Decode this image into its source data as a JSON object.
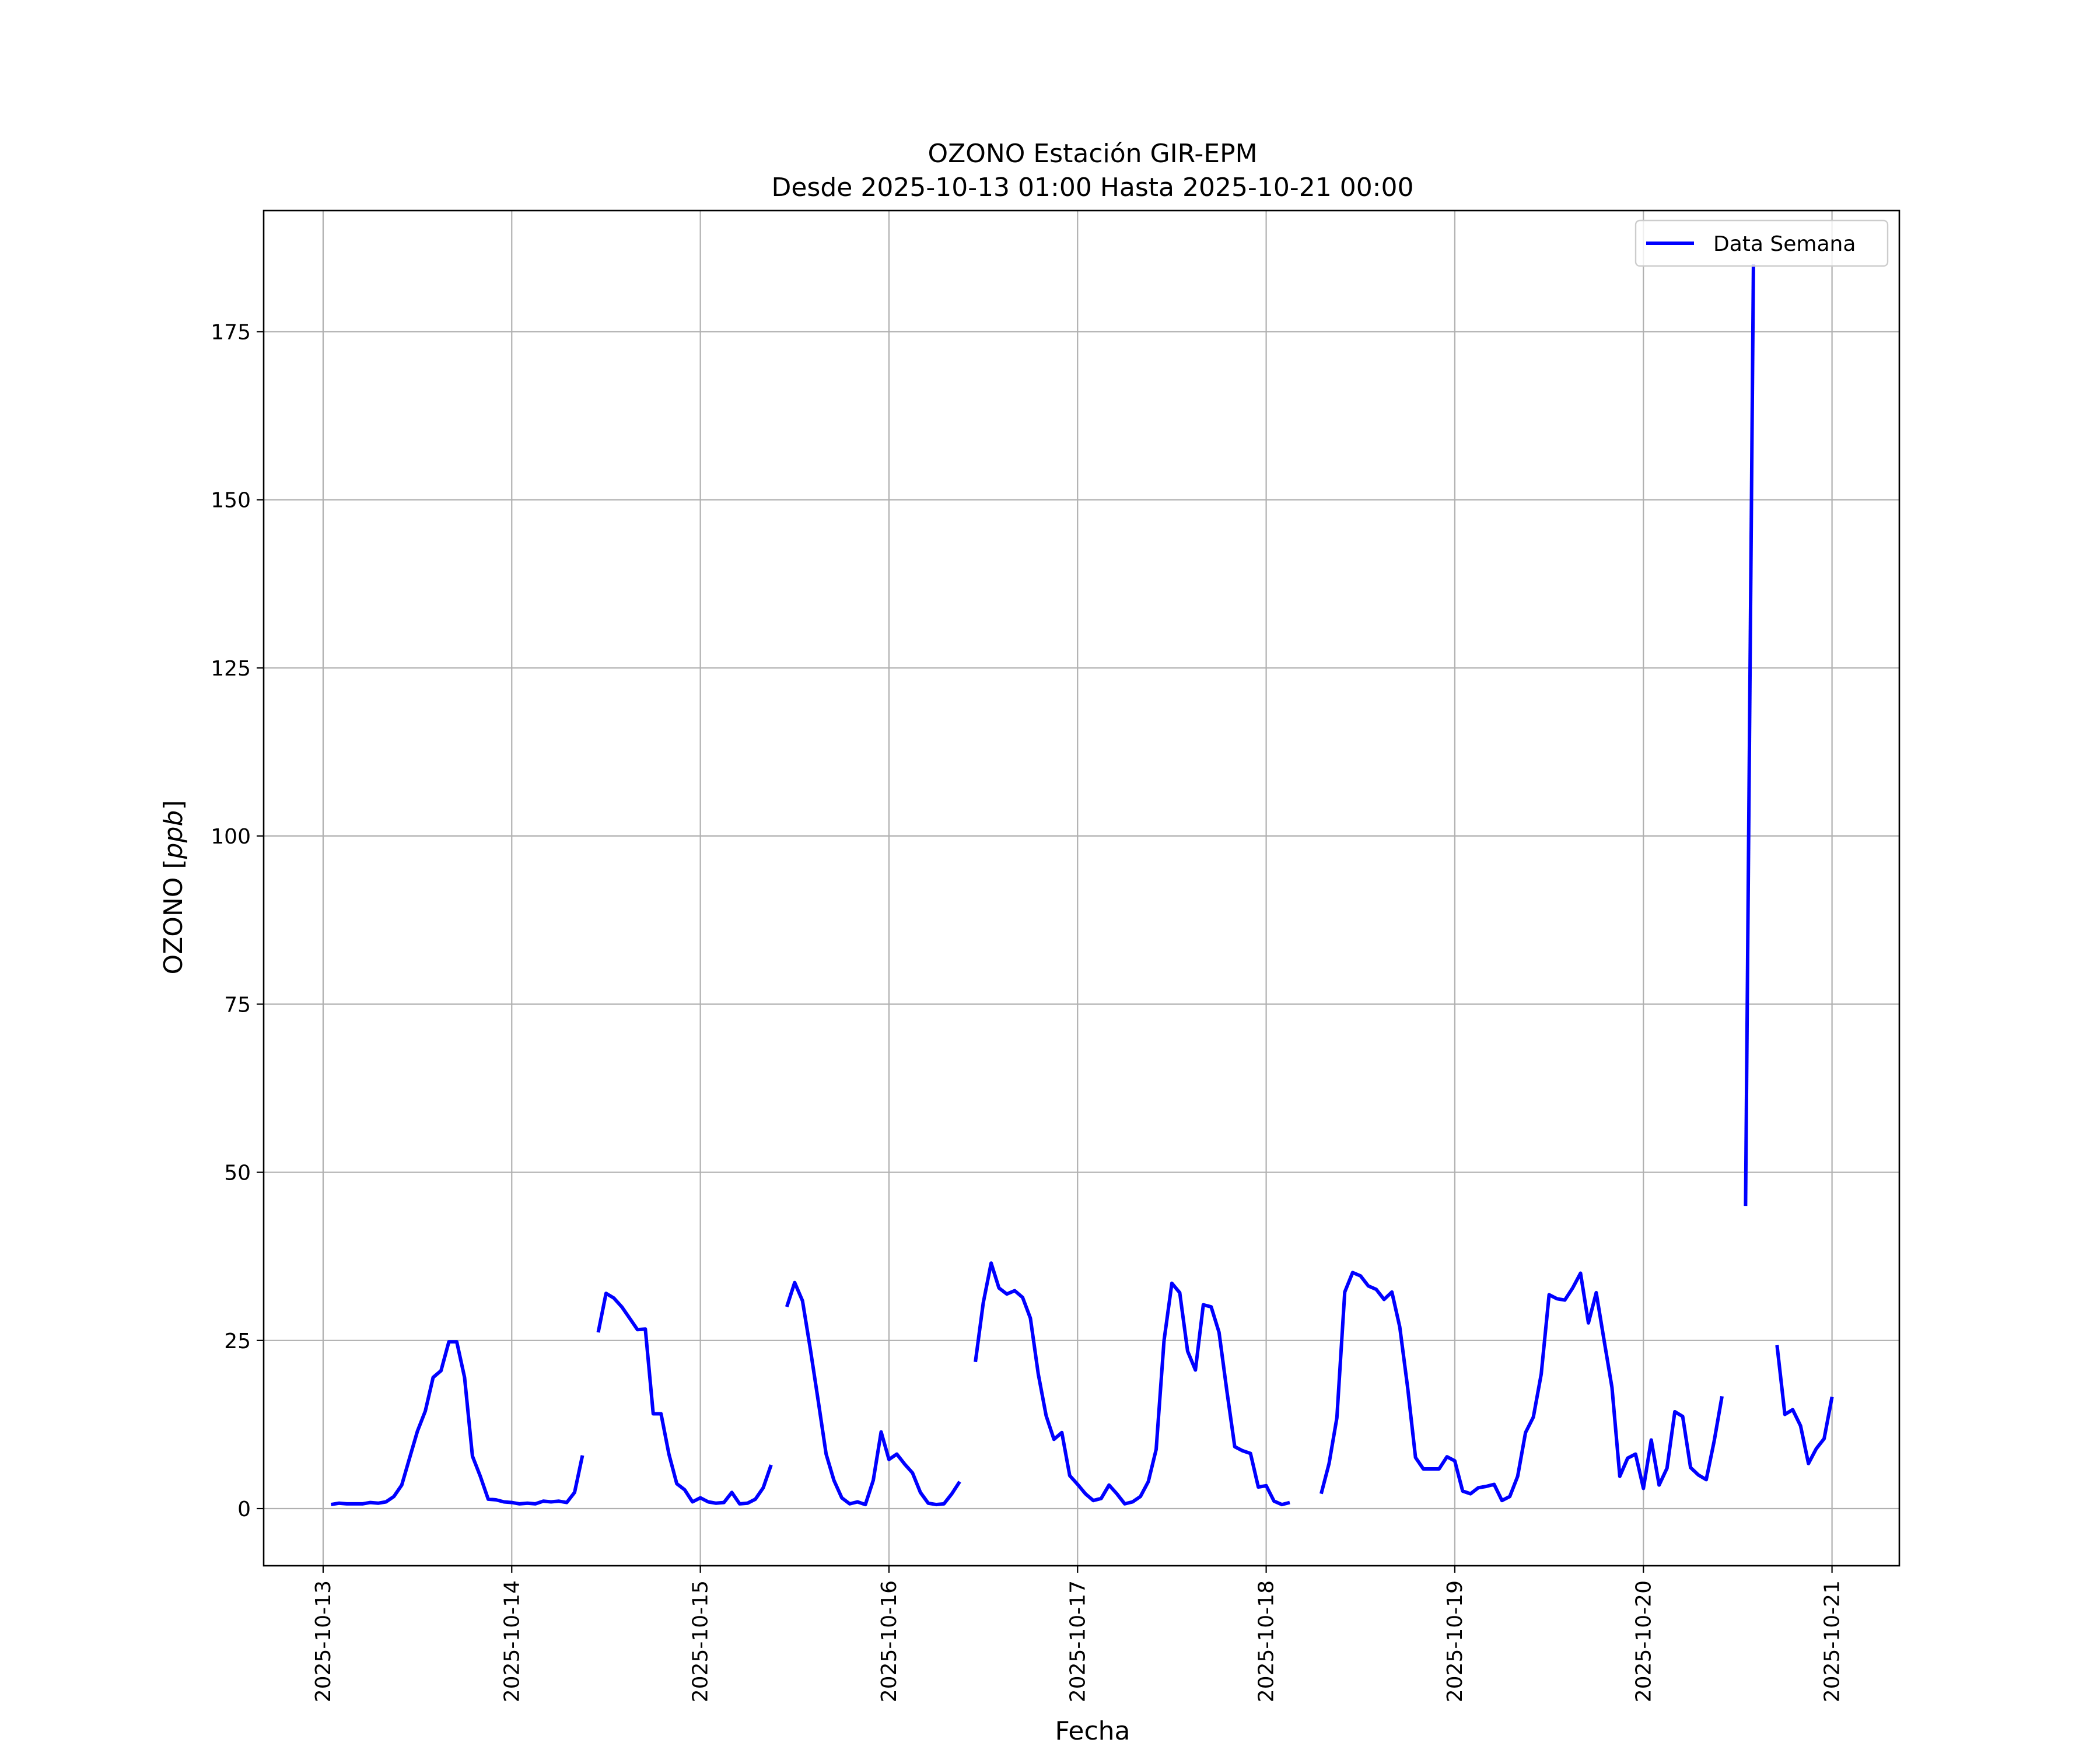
{
  "chart_data": {
    "type": "line",
    "title": "OZONO Estación GIR-EPM",
    "subtitle": "Desde 2025-10-13 01:00 Hasta 2025-10-21 00:00",
    "xlabel": "Fecha",
    "ylabel_prefix": "OZONO [",
    "ylabel_unit": "ppb",
    "ylabel_suffix": "]",
    "xlim": [
      "2025-10-12 16:26",
      "2025-10-21 08:34"
    ],
    "ylim": [
      -8.5,
      193
    ],
    "grid": true,
    "legend_position": "upper right",
    "colors": {
      "series": "#0000ff",
      "grid": "#b0b0b0",
      "axes": "#000000"
    },
    "x_tick_labels": [
      "2025-10-13",
      "2025-10-14",
      "2025-10-15",
      "2025-10-16",
      "2025-10-17",
      "2025-10-18",
      "2025-10-19",
      "2025-10-20",
      "2025-10-21"
    ],
    "y_ticks": [
      0,
      25,
      50,
      75,
      100,
      125,
      150,
      175
    ],
    "y_tick_labels": [
      "0",
      "25",
      "50",
      "75",
      "100",
      "125",
      "150",
      "175"
    ],
    "series": [
      {
        "name": "Data Semana",
        "segments": [
          [
            [
              "2025-10-13 01:00",
              0.6
            ],
            [
              "2025-10-13 02:00",
              0.8
            ],
            [
              "2025-10-13 03:00",
              0.7
            ],
            [
              "2025-10-13 04:00",
              0.7
            ],
            [
              "2025-10-13 05:00",
              0.7
            ],
            [
              "2025-10-13 06:00",
              0.9
            ],
            [
              "2025-10-13 07:00",
              0.8
            ],
            [
              "2025-10-13 08:00",
              1.0
            ],
            [
              "2025-10-13 09:00",
              1.8
            ],
            [
              "2025-10-13 10:00",
              3.5
            ],
            [
              "2025-10-13 11:00",
              7.5
            ],
            [
              "2025-10-13 12:00",
              11.5
            ],
            [
              "2025-10-13 13:00",
              14.5
            ],
            [
              "2025-10-13 14:00",
              19.5
            ],
            [
              "2025-10-13 15:00",
              20.5
            ],
            [
              "2025-10-13 16:00",
              24.8
            ],
            [
              "2025-10-13 17:00",
              24.8
            ],
            [
              "2025-10-13 18:00",
              19.5
            ],
            [
              "2025-10-13 19:00",
              7.8
            ],
            [
              "2025-10-13 20:00",
              4.8
            ],
            [
              "2025-10-13 21:00",
              1.4
            ],
            [
              "2025-10-13 22:00",
              1.3
            ],
            [
              "2025-10-13 23:00",
              1.0
            ],
            [
              "2025-10-14 00:00",
              0.9
            ],
            [
              "2025-10-14 01:00",
              0.7
            ],
            [
              "2025-10-14 02:00",
              0.8
            ],
            [
              "2025-10-14 03:00",
              0.7
            ],
            [
              "2025-10-14 04:00",
              1.1
            ],
            [
              "2025-10-14 05:00",
              1.0
            ],
            [
              "2025-10-14 06:00",
              1.1
            ],
            [
              "2025-10-14 07:00",
              0.9
            ],
            [
              "2025-10-14 08:00",
              2.4
            ],
            [
              "2025-10-14 09:00",
              7.9
            ]
          ],
          [
            [
              "2025-10-14 11:00",
              26.2
            ],
            [
              "2025-10-14 12:00",
              32.0
            ],
            [
              "2025-10-14 13:00",
              31.3
            ],
            [
              "2025-10-14 14:00",
              30.0
            ],
            [
              "2025-10-14 15:00",
              28.3
            ],
            [
              "2025-10-14 16:00",
              26.6
            ],
            [
              "2025-10-14 17:00",
              26.7
            ],
            [
              "2025-10-14 18:00",
              14.1
            ],
            [
              "2025-10-14 19:00",
              14.1
            ],
            [
              "2025-10-14 20:00",
              8.1
            ],
            [
              "2025-10-14 21:00",
              3.7
            ],
            [
              "2025-10-14 22:00",
              2.8
            ],
            [
              "2025-10-14 23:00",
              1.0
            ],
            [
              "2025-10-15 00:00",
              1.6
            ],
            [
              "2025-10-15 01:00",
              1.0
            ],
            [
              "2025-10-15 02:00",
              0.8
            ],
            [
              "2025-10-15 03:00",
              0.9
            ],
            [
              "2025-10-15 04:00",
              2.4
            ],
            [
              "2025-10-15 05:00",
              0.7
            ],
            [
              "2025-10-15 06:00",
              0.8
            ],
            [
              "2025-10-15 07:00",
              1.4
            ],
            [
              "2025-10-15 08:00",
              3.1
            ],
            [
              "2025-10-15 09:00",
              6.5
            ]
          ],
          [
            [
              "2025-10-15 11:00",
              30.0
            ],
            [
              "2025-10-15 12:00",
              33.6
            ],
            [
              "2025-10-15 13:00",
              30.9
            ],
            [
              "2025-10-15 14:00",
              23.7
            ],
            [
              "2025-10-15 15:00",
              16.0
            ],
            [
              "2025-10-15 16:00",
              8.1
            ],
            [
              "2025-10-15 17:00",
              4.2
            ],
            [
              "2025-10-15 18:00",
              1.6
            ],
            [
              "2025-10-15 19:00",
              0.7
            ],
            [
              "2025-10-15 20:00",
              1.0
            ],
            [
              "2025-10-15 21:00",
              0.6
            ],
            [
              "2025-10-15 22:00",
              4.2
            ],
            [
              "2025-10-15 23:00",
              11.4
            ],
            [
              "2025-10-16 00:00",
              7.3
            ],
            [
              "2025-10-16 01:00",
              8.1
            ],
            [
              "2025-10-16 02:00",
              6.6
            ],
            [
              "2025-10-16 03:00",
              5.3
            ],
            [
              "2025-10-16 04:00",
              2.4
            ],
            [
              "2025-10-16 05:00",
              0.8
            ],
            [
              "2025-10-16 06:00",
              0.6
            ],
            [
              "2025-10-16 07:00",
              0.7
            ],
            [
              "2025-10-16 08:00",
              2.2
            ],
            [
              "2025-10-16 09:00",
              4.0
            ]
          ],
          [
            [
              "2025-10-16 11:00",
              21.8
            ],
            [
              "2025-10-16 12:00",
              30.6
            ],
            [
              "2025-10-16 13:00",
              36.5
            ],
            [
              "2025-10-16 14:00",
              32.8
            ],
            [
              "2025-10-16 15:00",
              31.9
            ],
            [
              "2025-10-16 16:00",
              32.4
            ],
            [
              "2025-10-16 17:00",
              31.4
            ],
            [
              "2025-10-16 18:00",
              28.3
            ],
            [
              "2025-10-16 19:00",
              20.0
            ],
            [
              "2025-10-16 20:00",
              13.8
            ],
            [
              "2025-10-16 21:00",
              10.3
            ],
            [
              "2025-10-16 22:00",
              11.3
            ],
            [
              "2025-10-16 23:00",
              4.9
            ],
            [
              "2025-10-17 00:00",
              3.6
            ],
            [
              "2025-10-17 01:00",
              2.2
            ],
            [
              "2025-10-17 02:00",
              1.2
            ],
            [
              "2025-10-17 03:00",
              1.5
            ],
            [
              "2025-10-17 04:00",
              3.5
            ],
            [
              "2025-10-17 05:00",
              2.2
            ],
            [
              "2025-10-17 06:00",
              0.7
            ],
            [
              "2025-10-17 07:00",
              1.0
            ],
            [
              "2025-10-17 08:00",
              1.8
            ],
            [
              "2025-10-17 09:00",
              4.0
            ],
            [
              "2025-10-17 10:00",
              8.8
            ],
            [
              "2025-10-17 11:00",
              25.0
            ],
            [
              "2025-10-17 12:00",
              33.5
            ],
            [
              "2025-10-17 13:00",
              32.1
            ],
            [
              "2025-10-17 14:00",
              23.4
            ],
            [
              "2025-10-17 15:00",
              20.6
            ],
            [
              "2025-10-17 16:00",
              30.3
            ],
            [
              "2025-10-17 17:00",
              30.0
            ],
            [
              "2025-10-17 18:00",
              26.2
            ],
            [
              "2025-10-17 19:00",
              17.5
            ],
            [
              "2025-10-17 20:00",
              9.2
            ],
            [
              "2025-10-17 21:00",
              8.6
            ],
            [
              "2025-10-17 22:00",
              8.2
            ],
            [
              "2025-10-17 23:00",
              3.2
            ],
            [
              "2025-10-18 00:00",
              3.4
            ],
            [
              "2025-10-18 01:00",
              1.1
            ],
            [
              "2025-10-18 02:00",
              0.6
            ],
            [
              "2025-10-18 03:00",
              0.9
            ]
          ],
          [
            [
              "2025-10-18 07:00",
              2.2
            ],
            [
              "2025-10-18 08:00",
              6.7
            ],
            [
              "2025-10-18 09:00",
              13.5
            ],
            [
              "2025-10-18 10:00",
              32.2
            ],
            [
              "2025-10-18 11:00",
              35.1
            ],
            [
              "2025-10-18 12:00",
              34.6
            ],
            [
              "2025-10-18 13:00",
              33.1
            ],
            [
              "2025-10-18 14:00",
              32.6
            ],
            [
              "2025-10-18 15:00",
              31.1
            ],
            [
              "2025-10-18 16:00",
              32.2
            ],
            [
              "2025-10-18 17:00",
              27.0
            ],
            [
              "2025-10-18 18:00",
              18.0
            ],
            [
              "2025-10-18 19:00",
              7.6
            ],
            [
              "2025-10-18 20:00",
              5.9
            ],
            [
              "2025-10-18 21:00",
              5.9
            ],
            [
              "2025-10-18 22:00",
              5.9
            ],
            [
              "2025-10-18 23:00",
              7.7
            ],
            [
              "2025-10-19 00:00",
              7.1
            ],
            [
              "2025-10-19 01:00",
              2.6
            ],
            [
              "2025-10-19 02:00",
              2.2
            ],
            [
              "2025-10-19 03:00",
              3.1
            ],
            [
              "2025-10-19 04:00",
              3.3
            ],
            [
              "2025-10-19 05:00",
              3.6
            ],
            [
              "2025-10-19 06:00",
              1.2
            ],
            [
              "2025-10-19 07:00",
              1.8
            ],
            [
              "2025-10-19 08:00",
              4.8
            ],
            [
              "2025-10-19 09:00",
              11.3
            ],
            [
              "2025-10-19 10:00",
              13.6
            ],
            [
              "2025-10-19 11:00",
              20.0
            ],
            [
              "2025-10-19 12:00",
              31.8
            ],
            [
              "2025-10-19 13:00",
              31.2
            ],
            [
              "2025-10-19 14:00",
              31.0
            ],
            [
              "2025-10-19 15:00",
              32.8
            ],
            [
              "2025-10-19 16:00",
              35.0
            ],
            [
              "2025-10-19 17:00",
              27.6
            ],
            [
              "2025-10-19 18:00",
              32.1
            ],
            [
              "2025-10-19 19:00",
              25.0
            ],
            [
              "2025-10-19 20:00",
              18.0
            ],
            [
              "2025-10-19 21:00",
              4.8
            ],
            [
              "2025-10-19 22:00",
              7.5
            ],
            [
              "2025-10-19 23:00",
              8.1
            ],
            [
              "2025-10-20 00:00",
              3.0
            ],
            [
              "2025-10-20 01:00",
              10.2
            ],
            [
              "2025-10-20 02:00",
              3.5
            ],
            [
              "2025-10-20 03:00",
              6.0
            ],
            [
              "2025-10-20 04:00",
              14.4
            ],
            [
              "2025-10-20 05:00",
              13.7
            ],
            [
              "2025-10-20 06:00",
              6.1
            ],
            [
              "2025-10-20 07:00",
              5.0
            ],
            [
              "2025-10-20 08:00",
              4.3
            ],
            [
              "2025-10-20 09:00",
              10.0
            ],
            [
              "2025-10-20 10:00",
              16.7
            ]
          ],
          [
            [
              "2025-10-20 13:00",
              45.0
            ],
            [
              "2025-10-20 14:00",
              185.0
            ]
          ],
          [
            [
              "2025-10-20 17:00",
              24.3
            ],
            [
              "2025-10-20 18:00",
              14.0
            ],
            [
              "2025-10-20 19:00",
              14.7
            ],
            [
              "2025-10-20 20:00",
              12.3
            ],
            [
              "2025-10-20 21:00",
              6.7
            ],
            [
              "2025-10-20 22:00",
              8.9
            ],
            [
              "2025-10-20 23:00",
              10.4
            ],
            [
              "2025-10-21 00:00",
              16.6
            ]
          ]
        ]
      }
    ]
  }
}
